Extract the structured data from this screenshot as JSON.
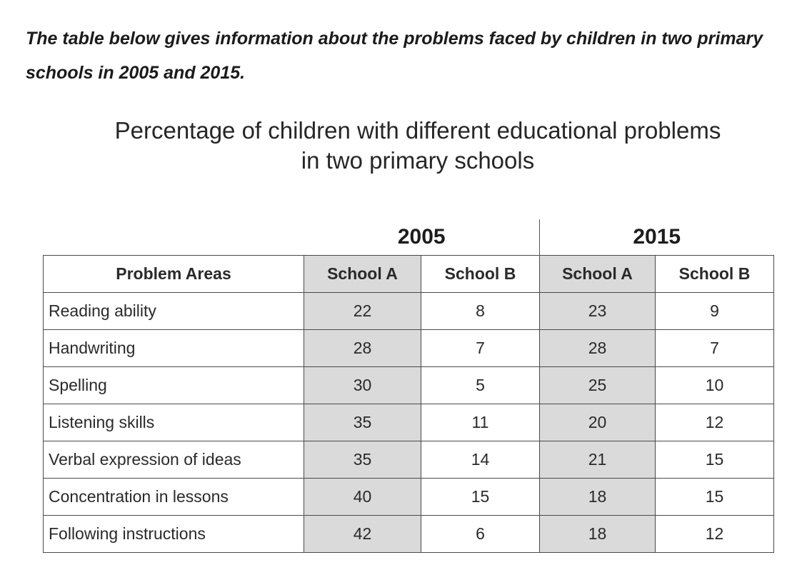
{
  "task": "The table below gives information about the problems faced by children in two primary schools in 2005 and 2015.",
  "chart_data": {
    "type": "table",
    "title_lines": [
      "Percentage of children with different educational problems",
      "in two primary schools"
    ],
    "years": [
      "2005",
      "2015"
    ],
    "columns": [
      "Problem Areas",
      "School A",
      "School B",
      "School A",
      "School B"
    ],
    "rows": [
      {
        "area": "Reading ability",
        "values": [
          22,
          8,
          23,
          9
        ]
      },
      {
        "area": "Handwriting",
        "values": [
          28,
          7,
          28,
          7
        ]
      },
      {
        "area": "Spelling",
        "values": [
          30,
          5,
          25,
          10
        ]
      },
      {
        "area": "Listening skills",
        "values": [
          35,
          11,
          20,
          12
        ]
      },
      {
        "area": "Verbal expression of ideas",
        "values": [
          35,
          14,
          21,
          15
        ]
      },
      {
        "area": "Concentration in lessons",
        "values": [
          40,
          15,
          18,
          15
        ]
      },
      {
        "area": "Following instructions",
        "values": [
          42,
          6,
          18,
          12
        ]
      }
    ],
    "shaded_color": "#dadada"
  }
}
